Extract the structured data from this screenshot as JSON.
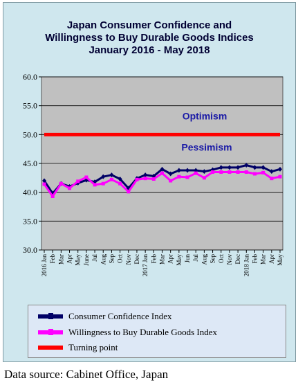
{
  "title_lines": [
    "Japan Consumer Confidence and",
    "Willingness to Buy Durable Goods Indices",
    "January 2016 - May 2018"
  ],
  "source_note": "Data source: Cabinet Office, Japan",
  "colors": {
    "frame_bg": "#cfe7ee",
    "plot_bg": "#c0c0c0",
    "series_confidence": "#000066",
    "series_durable": "#ff00ff",
    "turning_point": "#ff0000",
    "annotation": "#1a1aa6"
  },
  "chart_data": {
    "type": "line",
    "ylim": [
      30,
      60
    ],
    "yticks": [
      "30.0",
      "35.0",
      "40.0",
      "45.0",
      "50.0",
      "55.0",
      "60.0"
    ],
    "grid": true,
    "legend_position": "bottom",
    "x_labels": [
      "2016 Jan",
      "Feb",
      "Mar",
      "Apr",
      "May",
      "June",
      "Jul",
      "Aug",
      "Sep",
      "Oct",
      "Nov",
      "Dec",
      "2017 Jan",
      "Feb",
      "Mar",
      "Apr",
      "May",
      "Jun",
      "Jul",
      "Aug",
      "Sep",
      "Oct",
      "Nov",
      "Dec",
      "2018 Jan",
      "Feb",
      "Mar",
      "Apr",
      "May"
    ],
    "series": [
      {
        "name": "Consumer Confidence Index",
        "values": [
          42.0,
          39.8,
          41.5,
          41.0,
          41.6,
          42.1,
          41.8,
          42.7,
          43.0,
          42.3,
          40.7,
          42.4,
          43.0,
          42.8,
          44.0,
          43.2,
          43.8,
          43.8,
          43.8,
          43.6,
          43.9,
          44.3,
          44.3,
          44.3,
          44.7,
          44.3,
          44.3,
          43.6,
          44.0
        ]
      },
      {
        "name": "Willingness to Buy Durable Goods Index",
        "values": [
          41.4,
          39.3,
          41.5,
          40.7,
          41.9,
          42.6,
          41.3,
          41.5,
          42.2,
          41.5,
          40.1,
          42.2,
          42.4,
          42.3,
          43.3,
          42.0,
          42.7,
          42.6,
          43.3,
          42.5,
          43.5,
          43.5,
          43.5,
          43.5,
          43.5,
          43.2,
          43.4,
          42.4,
          42.7
        ]
      },
      {
        "name": "Turning point",
        "constant": 50.0
      }
    ],
    "annotations": [
      "Optimism",
      "Pessimism"
    ]
  }
}
